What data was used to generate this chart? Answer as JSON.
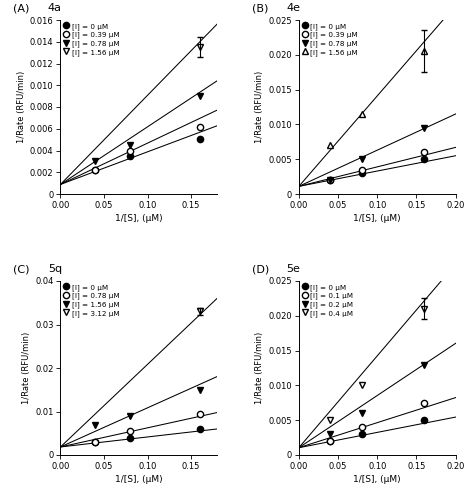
{
  "panels": [
    {
      "label": "A",
      "title": "4a",
      "xlabel": "1/[S], (μM)",
      "ylabel": "1/Rate (RFU/min)",
      "xlim": [
        0.0,
        0.18
      ],
      "ylim": [
        0.0,
        0.016
      ],
      "xticks": [
        0.0,
        0.05,
        0.1,
        0.15
      ],
      "yticks": [
        0.0,
        0.002,
        0.004,
        0.006,
        0.008,
        0.01,
        0.012,
        0.014,
        0.016
      ],
      "ytick_labels": [
        "0",
        "0.002",
        "0.004",
        "0.006",
        "0.008",
        "0.010",
        "0.012",
        "0.014",
        "0.016"
      ],
      "legend_labels": [
        "[I] = 0 μM",
        "[I] = 0.39 μM",
        "[I] = 0.78 μM",
        "[I] = 1.56 μM"
      ],
      "marker_styles": [
        "o",
        "o",
        "v",
        "v"
      ],
      "marker_filled": [
        true,
        false,
        true,
        false
      ],
      "series": [
        {
          "x": [
            0.04,
            0.08,
            0.16
          ],
          "y": [
            0.0022,
            0.0035,
            0.0051
          ]
        },
        {
          "x": [
            0.04,
            0.08,
            0.16
          ],
          "y": [
            0.0022,
            0.004,
            0.0062
          ]
        },
        {
          "x": [
            0.04,
            0.08,
            0.16
          ],
          "y": [
            0.003,
            0.0045,
            0.009
          ]
        },
        {
          "x": [
            0.16
          ],
          "y": [
            0.0135
          ]
        }
      ],
      "fit_lines": [
        {
          "slope": 0.03,
          "intercept": 0.00088
        },
        {
          "slope": 0.038,
          "intercept": 0.00088
        },
        {
          "slope": 0.053,
          "intercept": 0.00088
        },
        {
          "slope": 0.082,
          "intercept": 0.00088
        }
      ],
      "error_bars": [
        {
          "series_idx": 3,
          "point_idx": 0,
          "yerr": 0.0009
        }
      ]
    },
    {
      "label": "B",
      "title": "4e",
      "xlabel": "1/[S], (μM)",
      "ylabel": "1/Rate (RFU/min)",
      "xlim": [
        0.0,
        0.2
      ],
      "ylim": [
        0.0,
        0.025
      ],
      "xticks": [
        0.0,
        0.05,
        0.1,
        0.15,
        0.2
      ],
      "yticks": [
        0.0,
        0.005,
        0.01,
        0.015,
        0.02,
        0.025
      ],
      "ytick_labels": [
        "0",
        "0.005",
        "0.010",
        "0.015",
        "0.020",
        "0.025"
      ],
      "legend_labels": [
        "[I] = 0 μM",
        "[I] = 0.39 μM",
        "[I] = 0.78 μM",
        "[I] = 1.56 μM"
      ],
      "marker_styles": [
        "o",
        "o",
        "v",
        "^"
      ],
      "marker_filled": [
        true,
        false,
        true,
        false
      ],
      "series": [
        {
          "x": [
            0.04,
            0.08,
            0.16
          ],
          "y": [
            0.002,
            0.003,
            0.005
          ]
        },
        {
          "x": [
            0.04,
            0.08,
            0.16
          ],
          "y": [
            0.002,
            0.0035,
            0.006
          ]
        },
        {
          "x": [
            0.04,
            0.08,
            0.16
          ],
          "y": [
            0.002,
            0.005,
            0.0095
          ]
        },
        {
          "x": [
            0.04,
            0.08,
            0.16
          ],
          "y": [
            0.007,
            0.0115,
            0.0205
          ]
        }
      ],
      "fit_lines": [
        {
          "slope": 0.022,
          "intercept": 0.0011
        },
        {
          "slope": 0.028,
          "intercept": 0.0011
        },
        {
          "slope": 0.052,
          "intercept": 0.0011
        },
        {
          "slope": 0.13,
          "intercept": 0.0011
        }
      ],
      "error_bars": [
        {
          "series_idx": 3,
          "point_idx": 2,
          "yerr": 0.003
        }
      ]
    },
    {
      "label": "C",
      "title": "5q",
      "xlabel": "1/[S], (μM)",
      "ylabel": "1/Rate (RFU/min)",
      "xlim": [
        0.0,
        0.18
      ],
      "ylim": [
        0.0,
        0.04
      ],
      "xticks": [
        0.0,
        0.05,
        0.1,
        0.15
      ],
      "yticks": [
        0.0,
        0.01,
        0.02,
        0.03,
        0.04
      ],
      "ytick_labels": [
        "0",
        "0.01",
        "0.02",
        "0.03",
        "0.04"
      ],
      "legend_labels": [
        "[I] = 0 μM",
        "[I] = 0.78 μM",
        "[I] = 1.56 μM",
        "[I] = 3.12 μM"
      ],
      "marker_styles": [
        "o",
        "o",
        "v",
        "v"
      ],
      "marker_filled": [
        true,
        false,
        true,
        false
      ],
      "series": [
        {
          "x": [
            0.04,
            0.08,
            0.16
          ],
          "y": [
            0.003,
            0.004,
            0.006
          ]
        },
        {
          "x": [
            0.04,
            0.08,
            0.16
          ],
          "y": [
            0.003,
            0.0055,
            0.0095
          ]
        },
        {
          "x": [
            0.04,
            0.08,
            0.16
          ],
          "y": [
            0.007,
            0.009,
            0.015
          ]
        },
        {
          "x": [
            0.16
          ],
          "y": [
            0.033
          ]
        }
      ],
      "fit_lines": [
        {
          "slope": 0.023,
          "intercept": 0.00185
        },
        {
          "slope": 0.044,
          "intercept": 0.00185
        },
        {
          "slope": 0.09,
          "intercept": 0.00185
        },
        {
          "slope": 0.19,
          "intercept": 0.00185
        }
      ],
      "error_bars": [
        {
          "series_idx": 3,
          "point_idx": 0,
          "yerr": 0.0008
        }
      ]
    },
    {
      "label": "D",
      "title": "5e",
      "xlabel": "1/[S], (μM)",
      "ylabel": "1/Rate (RFU/min)",
      "xlim": [
        0.0,
        0.2
      ],
      "ylim": [
        0.0,
        0.025
      ],
      "xticks": [
        0.0,
        0.05,
        0.1,
        0.15,
        0.2
      ],
      "yticks": [
        0.0,
        0.005,
        0.01,
        0.015,
        0.02,
        0.025
      ],
      "ytick_labels": [
        "0",
        "0.005",
        "0.010",
        "0.015",
        "0.020",
        "0.025"
      ],
      "legend_labels": [
        "[I] = 0 μM",
        "[I] = 0.1 μM",
        "[I] = 0.2 μM",
        "[I] = 0.4 μM"
      ],
      "marker_styles": [
        "o",
        "o",
        "v",
        "v"
      ],
      "marker_filled": [
        true,
        false,
        true,
        false
      ],
      "series": [
        {
          "x": [
            0.04,
            0.08,
            0.16
          ],
          "y": [
            0.002,
            0.003,
            0.005
          ]
        },
        {
          "x": [
            0.04,
            0.08,
            0.16
          ],
          "y": [
            0.002,
            0.004,
            0.0075
          ]
        },
        {
          "x": [
            0.04,
            0.08,
            0.16
          ],
          "y": [
            0.003,
            0.006,
            0.013
          ]
        },
        {
          "x": [
            0.04,
            0.08,
            0.16
          ],
          "y": [
            0.005,
            0.01,
            0.021
          ]
        }
      ],
      "fit_lines": [
        {
          "slope": 0.022,
          "intercept": 0.00105
        },
        {
          "slope": 0.036,
          "intercept": 0.00105
        },
        {
          "slope": 0.075,
          "intercept": 0.00105
        },
        {
          "slope": 0.132,
          "intercept": 0.00105
        }
      ],
      "error_bars": [
        {
          "series_idx": 3,
          "point_idx": 2,
          "yerr": 0.0015
        }
      ]
    }
  ]
}
